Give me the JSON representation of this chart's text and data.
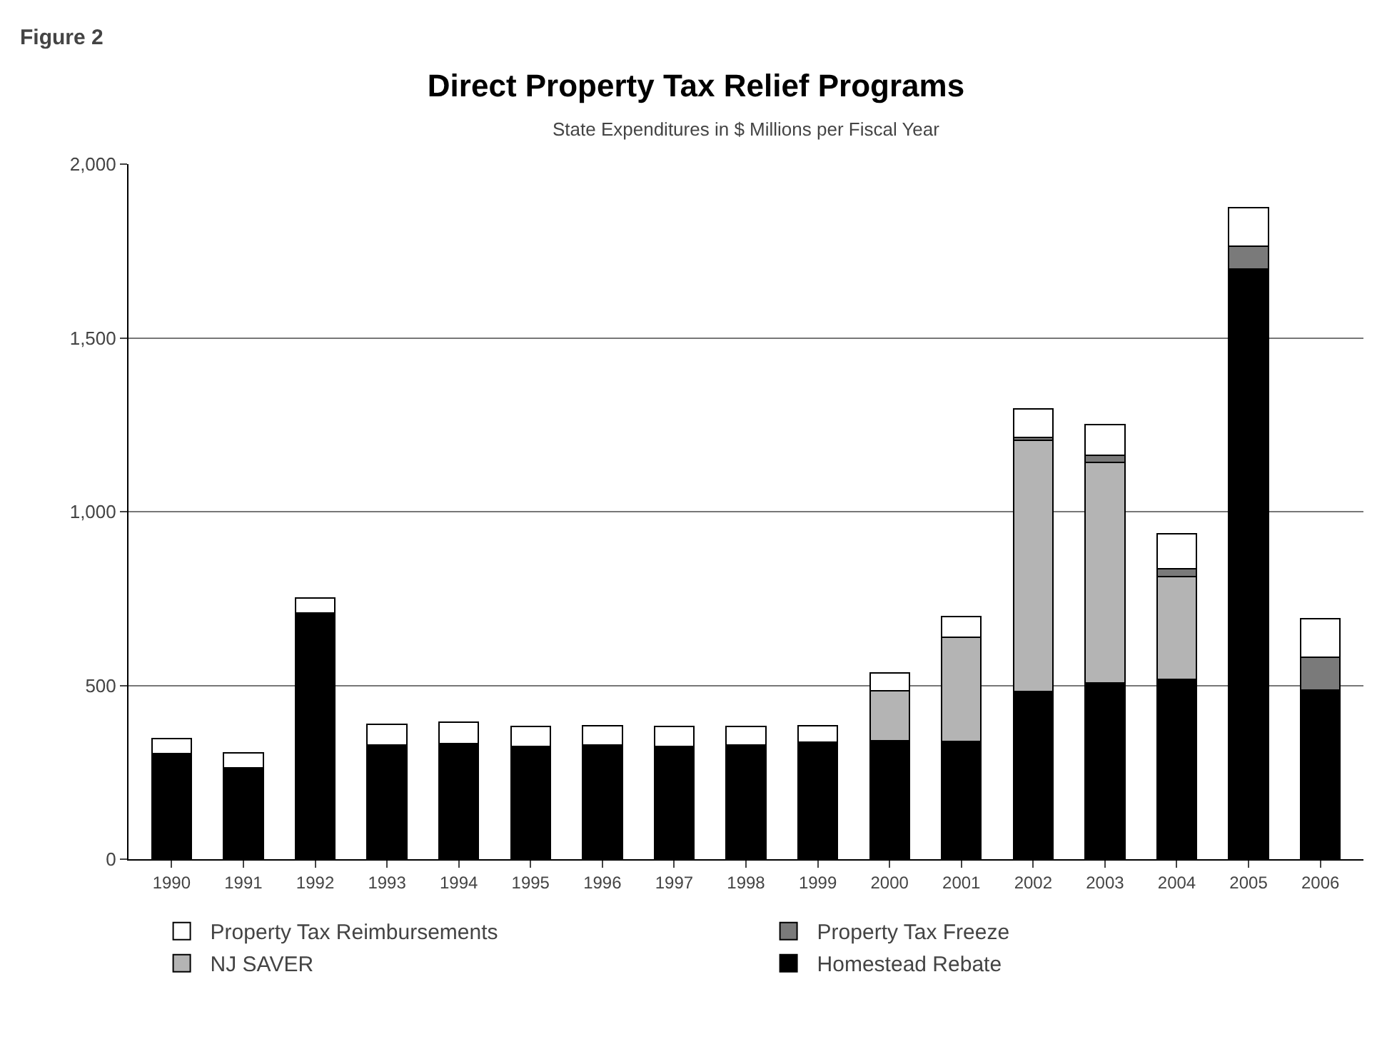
{
  "chart_data": {
    "type": "bar",
    "title": "Direct Property Tax Relief Programs",
    "subtitle": "State Expenditures in $ Millions per Fiscal Year",
    "annotations": [
      "Figure 2"
    ],
    "categories": [
      "1990",
      "1991",
      "1992",
      "1993",
      "1994",
      "1995",
      "1996",
      "1997",
      "1998",
      "1999",
      "2000",
      "2001",
      "2002",
      "2003",
      "2004",
      "2005",
      "2006"
    ],
    "stacked": true,
    "series": [
      {
        "name": "Homestead Rebate",
        "color": "#000000",
        "values": [
          303,
          262,
          708,
          328,
          333,
          325,
          328,
          325,
          328,
          336,
          341,
          338,
          483,
          508,
          518,
          1698,
          486
        ]
      },
      {
        "name": "NJ SAVER",
        "color": "#b4b4b4",
        "values": [
          null,
          null,
          null,
          null,
          null,
          null,
          null,
          null,
          null,
          null,
          143,
          300,
          722,
          634,
          296,
          null,
          null
        ]
      },
      {
        "name": "Property Tax Freeze",
        "color": "#7a7a7a",
        "values": [
          null,
          null,
          null,
          null,
          null,
          null,
          null,
          null,
          null,
          null,
          null,
          null,
          8,
          20,
          21,
          66,
          96
        ]
      },
      {
        "name": "Property Tax Reimbursements",
        "color": "#ffffff",
        "values": [
          45,
          45,
          44,
          60,
          61,
          57,
          57,
          57,
          54,
          49,
          52,
          61,
          82,
          88,
          101,
          110,
          109
        ]
      }
    ],
    "ylim": [
      0,
      2000
    ],
    "yticks": [
      {
        "value": 0,
        "label": "0"
      },
      {
        "value": 500,
        "label": "500"
      },
      {
        "value": 1000,
        "label": "1,000"
      },
      {
        "value": 1500,
        "label": "1,500"
      },
      {
        "value": 2000,
        "label": "2,000"
      }
    ],
    "grid": "y",
    "legend": "bottom"
  }
}
